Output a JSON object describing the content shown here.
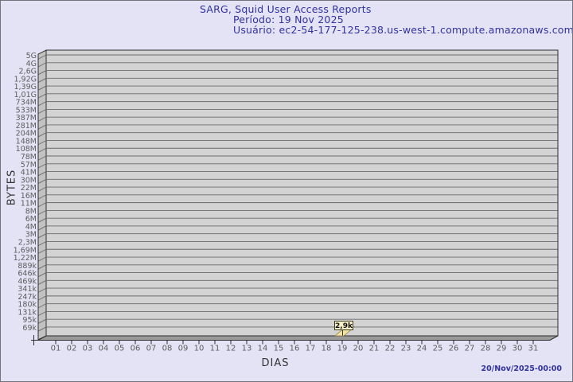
{
  "header": {
    "title": "SARG, Squid User Access Reports",
    "period": "Período: 19 Nov 2025",
    "user": "Usuário: ec2-54-177-125-238.us-west-1.compute.amazonaws.com"
  },
  "footer": {
    "generated": "20/Nov/2025-00:00"
  },
  "chart_data": {
    "type": "bar",
    "title": "SARG, Squid User Access Reports",
    "subtitle": [
      "Período: 19 Nov 2025",
      "Usuário: ec2-54-177-125-238.us-west-1.compute.amazonaws.com"
    ],
    "xlabel": "DIAS",
    "ylabel": "BYTES",
    "y_scale": "logarithmic",
    "grid": "horizontal",
    "legend": "none",
    "x_categories": [
      "01",
      "02",
      "03",
      "04",
      "05",
      "06",
      "07",
      "08",
      "09",
      "10",
      "11",
      "12",
      "13",
      "14",
      "15",
      "16",
      "17",
      "18",
      "19",
      "20",
      "21",
      "22",
      "23",
      "24",
      "25",
      "26",
      "27",
      "28",
      "29",
      "30",
      "31"
    ],
    "y_tick_labels": [
      "5G",
      "4G",
      "2,6G",
      "1,92G",
      "1,39G",
      "1,01G",
      "734M",
      "533M",
      "387M",
      "281M",
      "204M",
      "148M",
      "108M",
      "78M",
      "57M",
      "41M",
      "30M",
      "22M",
      "16M",
      "11M",
      "8M",
      "6M",
      "4M",
      "3M",
      "2,3M",
      "1,69M",
      "1,22M",
      "889k",
      "646k",
      "469k",
      "341k",
      "247k",
      "180k",
      "131k",
      "95k",
      "69k"
    ],
    "series": [
      {
        "name": "bytes-per-day",
        "points": [
          {
            "x": "19",
            "value_label": "2,9k",
            "value_bytes": 2900
          }
        ]
      }
    ]
  },
  "colors": {
    "background": "#e3e3f5",
    "title_text": "#32329e",
    "axis_text": "#5d5d5d",
    "plot_bg": "#d3d3d3",
    "gridline": "#6b6b6b",
    "wall": "#c2c2c2",
    "floor": "#9b9b9b",
    "frame": "#2e2e2e",
    "bar_fill": "#f4e3a1",
    "bar_stroke": "#8a7a35",
    "tooltip_bg": "#f7f0c9",
    "tooltip_border": "#3c3c20",
    "timestamp_text": "#32329e"
  }
}
